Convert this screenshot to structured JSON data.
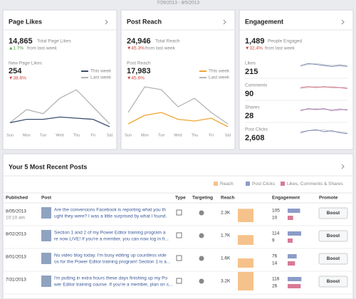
{
  "date_range": "7/29/2013 - 8/5/2013",
  "panels": [
    {
      "title": "Page Likes",
      "total": "14,865",
      "total_label": "Total Page Likes",
      "change": "▲1.7%",
      "change_note": "from last week",
      "sub_label": "New Page Likes",
      "sub_value": "254",
      "sub_change": "▼38.6%",
      "chart": {
        "type": "line",
        "categories": [
          "Sun",
          "Mon",
          "Tue",
          "Wed",
          "Thu",
          "Fri",
          "Sat"
        ],
        "ylim": [
          0,
          80
        ],
        "series": [
          {
            "name": "This week",
            "color": "#3b4e6e",
            "values": [
              12,
              18,
              18,
              22,
              20,
              18,
              5
            ]
          },
          {
            "name": "Last week",
            "color": "#b5b5b5",
            "values": [
              12,
              35,
              28,
              55,
              70,
              40,
              10
            ]
          }
        ]
      }
    },
    {
      "title": "Post Reach",
      "total": "24,946",
      "total_label": "Total Reach",
      "change": "▼45.3%",
      "change_note": "from last week",
      "sub_label": "Post Reach",
      "sub_value": "17,983",
      "sub_change": "▼45.6%",
      "chart": {
        "type": "line",
        "categories": [
          "Sun",
          "Mon",
          "Tue",
          "Wed",
          "Thu",
          "Fri",
          "Sat"
        ],
        "ylim": [
          0,
          80
        ],
        "series": [
          {
            "name": "This week",
            "color": "#f0a431",
            "values": [
              10,
              25,
              30,
              18,
              15,
              20,
              5
            ]
          },
          {
            "name": "Last week",
            "color": "#b5b5b5",
            "values": [
              30,
              75,
              70,
              40,
              55,
              30,
              10
            ]
          }
        ]
      }
    }
  ],
  "engagement": {
    "title": "Engagement",
    "total": "1,489",
    "total_label": "People Engaged",
    "change": "▼32.4%",
    "change_note": "from last week",
    "metrics": [
      {
        "label": "Likes",
        "value": "215",
        "chart": {
          "type": "line",
          "ylim": [
            0,
            10
          ],
          "series": [
            {
              "color": "#6b7fb0",
              "values": [
                5,
                7,
                6,
                5,
                4,
                5,
                4
              ]
            },
            {
              "color": "#c8c8c8",
              "values": [
                4,
                6,
                7,
                6,
                5,
                6,
                5
              ]
            }
          ]
        }
      },
      {
        "label": "Comments",
        "value": "90",
        "chart": {
          "type": "line",
          "ylim": [
            0,
            10
          ],
          "series": [
            {
              "color": "#d66a7f",
              "values": [
                5,
                6,
                5,
                6,
                5,
                5,
                4
              ]
            },
            {
              "color": "#c8c8c8",
              "values": [
                4,
                5,
                6,
                5,
                6,
                5,
                5
              ]
            }
          ]
        }
      },
      {
        "label": "Shares",
        "value": "28",
        "chart": {
          "type": "line",
          "ylim": [
            0,
            10
          ],
          "series": [
            {
              "color": "#a46aa8",
              "values": [
                4,
                6,
                5,
                6,
                4,
                5,
                5
              ]
            },
            {
              "color": "#c8c8c8",
              "values": [
                5,
                5,
                6,
                5,
                5,
                6,
                4
              ]
            }
          ]
        }
      },
      {
        "label": "Post Clicks",
        "value": "2,608",
        "chart": {
          "type": "line",
          "ylim": [
            0,
            10
          ],
          "series": [
            {
              "color": "#6b7fb0",
              "values": [
                4,
                6,
                7,
                5,
                6,
                4,
                3
              ]
            },
            {
              "color": "#c8c8c8",
              "values": [
                5,
                6,
                6,
                7,
                5,
                5,
                4
              ]
            }
          ]
        }
      }
    ]
  },
  "posts": {
    "title": "Your 5 Most Recent Posts",
    "legend": [
      {
        "name": "Reach",
        "color": "#f6c28b"
      },
      {
        "name": "Post Clicks",
        "color": "#8c9cc8"
      },
      {
        "name": "Likes, Comments & Shares",
        "color": "#d87a95"
      }
    ],
    "columns": [
      "Published",
      "Post",
      "Type",
      "Targeting",
      "Reach",
      "Engagement",
      "Promote"
    ],
    "reach_max": 3200,
    "clicks_max": 120,
    "likes_max": 30,
    "rows": [
      {
        "date": "8/05/2013",
        "time": "10:10 am",
        "text": [
          "Are the conversions Facebook is reporting what you th",
          "ught they were? I was a little surprised by what I found."
        ],
        "reach": 2300,
        "reach_label": "2.3K",
        "clicks": 105,
        "likes": 10,
        "button": "Boost"
      },
      {
        "date": "8/02/2013",
        "time": "",
        "text": [
          "Section 1 and 2 of my Power Editor training program a",
          "re now LIVE! If you're a member, you can now log in fr..."
        ],
        "reach": 1700,
        "reach_label": "1.7K",
        "clicks": 114,
        "likes": 9,
        "button": "Boost"
      },
      {
        "date": "8/01/2013",
        "time": "",
        "text": [
          "No video blog today. I'm busy editing up countless vide",
          "os for the Power Editor training program! Section 1 is a..."
        ],
        "reach": 1600,
        "reach_label": "1.6K",
        "clicks": 76,
        "likes": 14,
        "button": "Boost"
      },
      {
        "date": "7/31/2013",
        "time": "",
        "text": [
          "I'm putting in extra hours these days finishing up my Po",
          "wer Editor training course. If you're a member, plan on s..."
        ],
        "reach": 3200,
        "reach_label": "3.2K",
        "clicks": 116,
        "likes": 26,
        "button": "Boost"
      }
    ]
  }
}
